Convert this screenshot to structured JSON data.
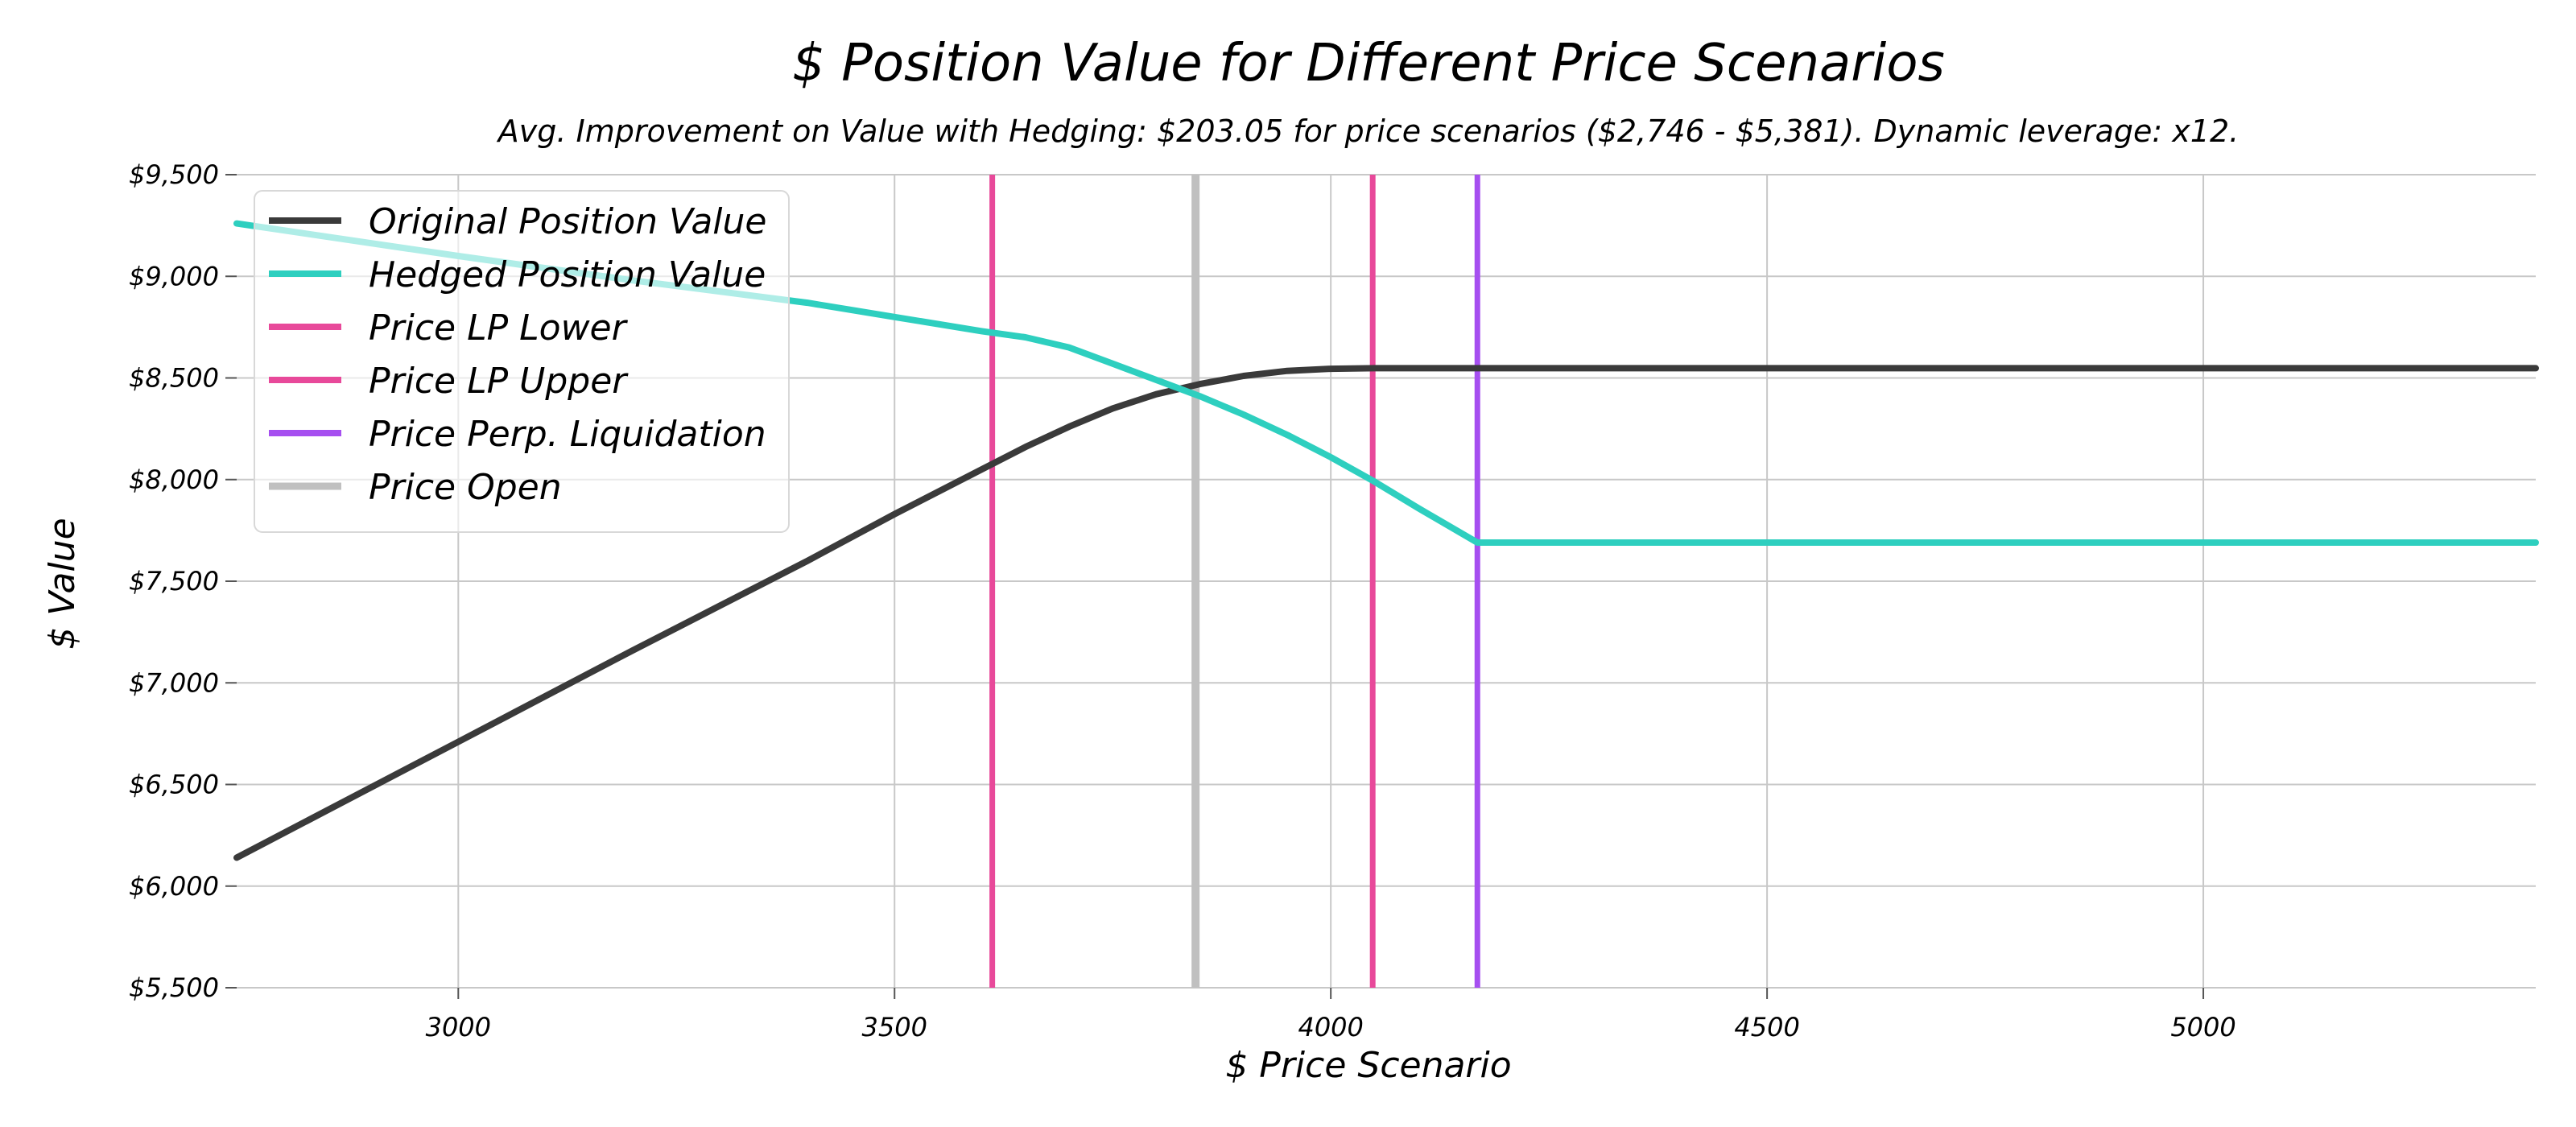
{
  "chart_data": {
    "type": "line",
    "title": "$ Position Value for Different Price Scenarios",
    "subtitle": "Avg. Improvement on Value with Hedging: $203.05 for price scenarios ($2,746 - $5,381). Dynamic leverage: x12.",
    "xlabel": "$ Price Scenario",
    "ylabel": "$ Value",
    "xlim": [
      2746,
      5381
    ],
    "ylim": [
      5500,
      9500
    ],
    "x_ticks": [
      3000,
      3500,
      4000,
      4500,
      5000
    ],
    "x_tick_labels": [
      "3000",
      "3500",
      "4000",
      "4500",
      "5000"
    ],
    "y_ticks": [
      5500,
      6000,
      6500,
      7000,
      7500,
      8000,
      8500,
      9000,
      9500
    ],
    "y_tick_labels": [
      "$5,500",
      "$6,000",
      "$6,500",
      "$7,000",
      "$7,500",
      "$8,000",
      "$8,500",
      "$9,000",
      "$9,500"
    ],
    "grid": true,
    "legend_position": "top-left",
    "series": [
      {
        "name": "Original Position Value",
        "color": "#3a3a3a",
        "x": [
          2746,
          3000,
          3200,
          3400,
          3500,
          3600,
          3650,
          3700,
          3750,
          3800,
          3850,
          3900,
          3950,
          4000,
          4050,
          4100,
          4200,
          4500,
          5000,
          5381
        ],
        "y": [
          6140,
          6710,
          7160,
          7600,
          7830,
          8050,
          8160,
          8260,
          8350,
          8420,
          8470,
          8510,
          8535,
          8545,
          8548,
          8548,
          8548,
          8548,
          8548,
          8548
        ]
      },
      {
        "name": "Hedged Position Value",
        "color": "#2ecfbf",
        "x": [
          2746,
          3000,
          3200,
          3400,
          3500,
          3600,
          3650,
          3700,
          3750,
          3800,
          3850,
          3900,
          3950,
          4000,
          4050,
          4100,
          4168,
          4200,
          4500,
          5000,
          5381
        ],
        "y": [
          9260,
          9100,
          8980,
          8870,
          8800,
          8730,
          8700,
          8650,
          8570,
          8490,
          8410,
          8320,
          8220,
          8110,
          7990,
          7860,
          7690,
          7690,
          7690,
          7690,
          7690
        ]
      }
    ],
    "vertical_lines": [
      {
        "name": "Price LP Lower",
        "x": 3612,
        "color": "#e8499a"
      },
      {
        "name": "Price LP Upper",
        "x": 4048,
        "color": "#e8499a"
      },
      {
        "name": "Price Perp. Liquidation",
        "x": 4168,
        "color": "#a64ff0"
      },
      {
        "name": "Price Open",
        "x": 3845,
        "color": "#c0c0c0"
      }
    ]
  }
}
